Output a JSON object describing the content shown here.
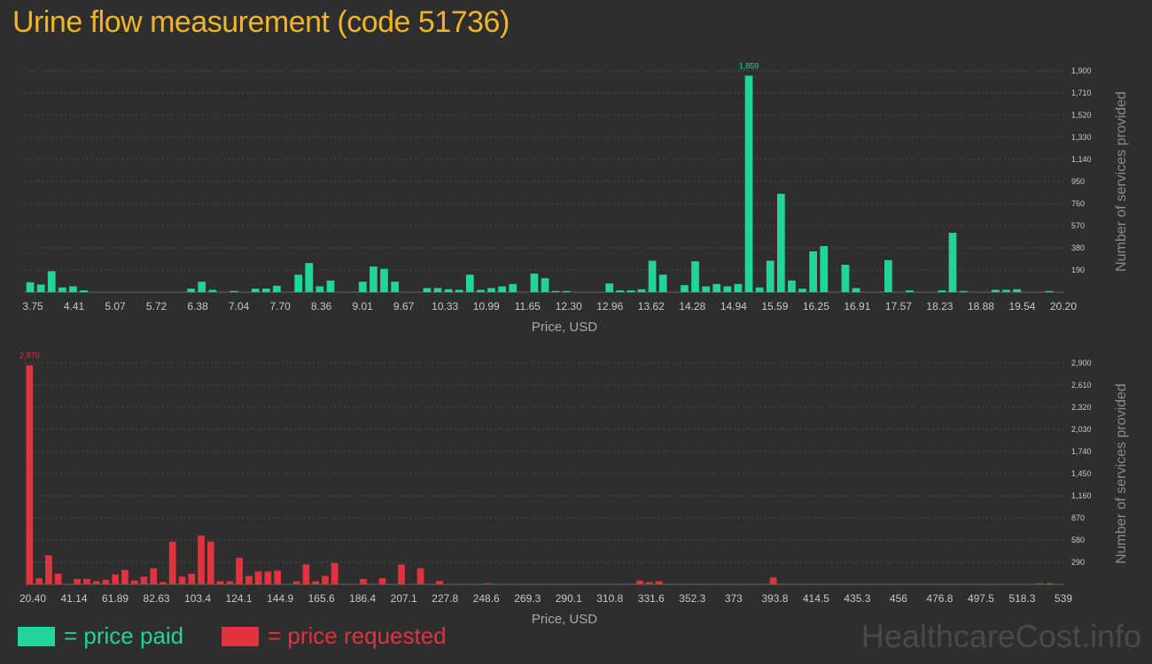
{
  "page": {
    "title": "Urine flow measurement (code 51736)",
    "brand": "HealthcareCost.info",
    "legend": [
      {
        "label": "= price paid",
        "color": "#22d39a"
      },
      {
        "label": "= price requested",
        "color": "#e0323f"
      }
    ]
  },
  "chart_data": [
    {
      "type": "bar",
      "color": "#22d39a",
      "xlabel": "Price, USD",
      "ylabel": "Number of services provided",
      "ylim": [
        0,
        1900
      ],
      "yticks": [
        "190",
        "380",
        "570",
        "760",
        "950",
        "1,140",
        "1,330",
        "1,520",
        "1,710",
        "1,900"
      ],
      "xticks": [
        "3.75",
        "4.41",
        "5.07",
        "5.72",
        "6.38",
        "7.04",
        "7.70",
        "8.36",
        "9.01",
        "9.67",
        "10.33",
        "10.99",
        "11.65",
        "12.30",
        "12.96",
        "13.62",
        "14.28",
        "14.94",
        "15.59",
        "16.25",
        "16.91",
        "17.57",
        "18.23",
        "18.88",
        "19.54",
        "20.20"
      ],
      "peak_label": "1,859",
      "values": [
        85,
        65,
        180,
        40,
        50,
        15,
        0,
        0,
        0,
        0,
        0,
        0,
        0,
        0,
        0,
        30,
        90,
        20,
        0,
        10,
        0,
        30,
        30,
        55,
        0,
        150,
        250,
        50,
        100,
        0,
        0,
        90,
        220,
        200,
        90,
        0,
        0,
        35,
        35,
        25,
        20,
        150,
        20,
        35,
        50,
        70,
        0,
        160,
        120,
        10,
        10,
        0,
        0,
        0,
        75,
        15,
        15,
        25,
        270,
        150,
        0,
        60,
        265,
        50,
        70,
        50,
        70,
        1859,
        40,
        270,
        845,
        100,
        30,
        350,
        395,
        0,
        235,
        35,
        0,
        0,
        275,
        0,
        15,
        0,
        0,
        15,
        510,
        10,
        0,
        0,
        20,
        20,
        25,
        0,
        0,
        10
      ]
    },
    {
      "type": "bar",
      "color": "#e0323f",
      "xlabel": "Price, USD",
      "ylabel": "Number of services provided",
      "ylim": [
        0,
        2900
      ],
      "yticks": [
        "290",
        "580",
        "870",
        "1,160",
        "1,450",
        "1,740",
        "2,030",
        "2,320",
        "2,610",
        "2,900"
      ],
      "xticks": [
        "20.40",
        "41.14",
        "61.89",
        "82.63",
        "103.4",
        "124.1",
        "144.9",
        "165.6",
        "186.4",
        "207.1",
        "227.8",
        "248.6",
        "269.3",
        "290.1",
        "310.8",
        "331.6",
        "352.3",
        "373",
        "393.8",
        "414.5",
        "435.3",
        "456",
        "476.8",
        "497.5",
        "518.3",
        "539"
      ],
      "peak_label": "2,870",
      "values": [
        2870,
        80,
        380,
        140,
        0,
        70,
        70,
        40,
        60,
        130,
        190,
        50,
        100,
        210,
        30,
        560,
        100,
        140,
        640,
        560,
        40,
        40,
        350,
        110,
        170,
        170,
        180,
        0,
        40,
        260,
        40,
        110,
        280,
        0,
        0,
        70,
        0,
        80,
        0,
        260,
        0,
        210,
        0,
        45,
        0,
        0,
        0,
        0,
        15,
        0,
        0,
        0,
        0,
        0,
        0,
        0,
        0,
        0,
        0,
        0,
        0,
        0,
        0,
        0,
        50,
        30,
        40,
        0,
        0,
        0,
        0,
        0,
        0,
        0,
        0,
        0,
        0,
        0,
        90,
        0,
        0,
        0,
        0,
        0,
        0,
        0,
        0,
        0,
        0,
        0,
        0,
        0,
        0,
        0,
        0,
        0,
        0,
        0,
        0,
        0,
        0,
        0,
        0,
        0,
        0,
        0,
        15,
        15
      ]
    }
  ]
}
